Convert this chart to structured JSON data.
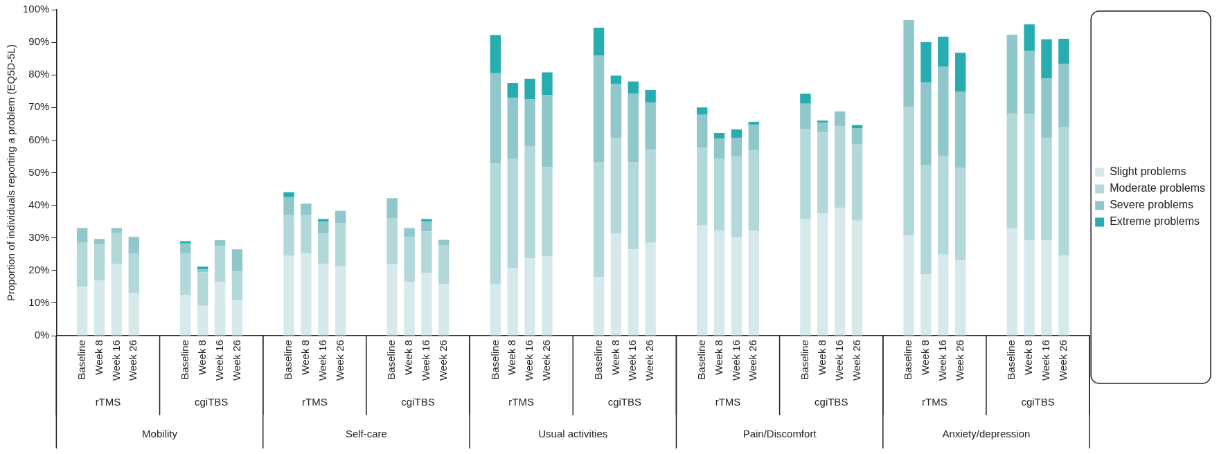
{
  "chart_data": {
    "type": "bar",
    "stacked": true,
    "ylabel": "Proportion of individuals reporting a problem (EQ5D-5L)",
    "categories": [
      null,
      "Baseline",
      "Week 8",
      "Week 16",
      "Week 26",
      null,
      null,
      "Baseline",
      "Week 8",
      "Week 16",
      "Week 26",
      null,
      null,
      "Baseline",
      "Week 8",
      "Week 16",
      "Week 26",
      null,
      null,
      "Baseline",
      "Week 8",
      "Week 16",
      "Week 26",
      null,
      null,
      "Baseline",
      "Week 8",
      "Week 16",
      "Week 26",
      null,
      null,
      "Baseline",
      "Week 8",
      "Week 16",
      "Week 26",
      null,
      null,
      "Baseline",
      "Week 8",
      "Week 16",
      "Week 26",
      null,
      null,
      "Baseline",
      "Week 8",
      "Week 16",
      "Week 26",
      null,
      null,
      "Baseline",
      "Week 8",
      "Week 16",
      "Week 26",
      null,
      null,
      "Baseline",
      "Week 8",
      "Week 16",
      "Week 26",
      null
    ],
    "series": [
      {
        "name": "Slight problems",
        "color": "#d6eaec",
        "values": [
          null,
          15,
          17,
          22,
          13,
          null,
          null,
          12.5,
          9.2,
          16.5,
          10.8,
          null,
          null,
          24.5,
          25.3,
          22,
          21.3,
          null,
          null,
          22,
          16.5,
          19.3,
          15.8,
          null,
          null,
          15.8,
          20.8,
          23.8,
          24.3,
          null,
          null,
          18,
          31.3,
          26.5,
          28.5,
          null,
          null,
          33.8,
          32.3,
          30.2,
          32.2,
          null,
          null,
          35.8,
          37.6,
          39.3,
          35.3,
          null,
          null,
          30.8,
          18.9,
          24.9,
          23.1,
          null,
          null,
          32.8,
          29.3,
          29.3,
          24.6,
          null
        ]
      },
      {
        "name": "Moderate problems",
        "color": "#b2d8da",
        "values": [
          null,
          13.5,
          11,
          9.5,
          12.3,
          null,
          null,
          12.8,
          10.3,
          11,
          8.9,
          null,
          null,
          12.5,
          11.7,
          9.3,
          13.2,
          null,
          null,
          14,
          13.8,
          12.7,
          11.9,
          null,
          null,
          37,
          33.4,
          34.2,
          27.4,
          null,
          null,
          35.3,
          29.4,
          26.7,
          28.5,
          null,
          null,
          23.8,
          21.9,
          25,
          24.6,
          null,
          null,
          27.6,
          24.8,
          25,
          23.4,
          null,
          null,
          39.5,
          33.4,
          30.2,
          28.5,
          null,
          null,
          35.3,
          38.7,
          31.4,
          39.2,
          null
        ]
      },
      {
        "name": "Severe problems",
        "color": "#8fc7ca",
        "values": [
          null,
          4.5,
          1.7,
          1.5,
          5,
          null,
          null,
          3,
          0.8,
          1.8,
          6.8,
          null,
          null,
          5.5,
          3.5,
          3.7,
          3.8,
          null,
          null,
          6.2,
          2.7,
          3,
          1.7,
          null,
          null,
          27.7,
          18.8,
          14.5,
          22.1,
          null,
          null,
          32.7,
          16.5,
          21.1,
          14.5,
          null,
          null,
          10.2,
          6.3,
          5.5,
          7.9,
          null,
          null,
          7.8,
          2.9,
          4.5,
          4.9,
          null,
          null,
          26.5,
          25.3,
          27.5,
          23.2,
          null,
          null,
          24.2,
          19.3,
          18.3,
          19.6,
          null
        ]
      },
      {
        "name": "Extreme problems",
        "color": "#27adb0",
        "values": [
          null,
          0,
          0,
          0,
          0,
          null,
          null,
          0.7,
          0.9,
          0,
          0,
          null,
          null,
          1.5,
          0,
          0.8,
          0,
          null,
          null,
          0,
          0,
          0.8,
          0,
          null,
          null,
          11.7,
          4.5,
          6.3,
          7,
          null,
          null,
          8.5,
          2.6,
          3.7,
          3.9,
          null,
          null,
          2.2,
          1.7,
          2.6,
          0.9,
          null,
          null,
          3,
          0.7,
          0,
          1,
          null,
          null,
          0,
          12.5,
          9.1,
          12,
          null,
          null,
          0,
          8.2,
          11.9,
          7.7,
          null
        ]
      }
    ],
    "ylim": [
      0,
      100
    ],
    "yticks": [
      {
        "value": 0,
        "label": "0%"
      },
      {
        "value": 10,
        "label": "10%"
      },
      {
        "value": 20,
        "label": "20%"
      },
      {
        "value": 30,
        "label": "30%"
      },
      {
        "value": 40,
        "label": "40%"
      },
      {
        "value": 50,
        "label": "50%"
      },
      {
        "value": 60,
        "label": "60%"
      },
      {
        "value": 70,
        "label": "70%"
      },
      {
        "value": 80,
        "label": "80%"
      },
      {
        "value": 90,
        "label": "90%"
      },
      {
        "value": 100,
        "label": "100%"
      }
    ],
    "grid": false,
    "legend": "right",
    "annotations": [
      "rTMS",
      "cgiTBS",
      "rTMS",
      "cgiTBS",
      "rTMS",
      "cgiTBS",
      "rTMS",
      "cgiTBS",
      "rTMS",
      "cgiTBS",
      "Mobility",
      "Self-care",
      "Usual activities",
      "Pain/Discomfort",
      "Anxiety/depression"
    ]
  }
}
